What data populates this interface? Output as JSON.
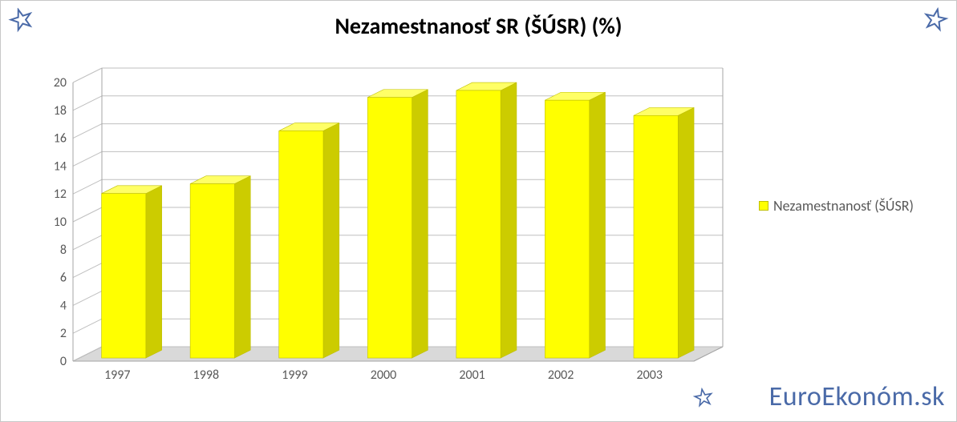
{
  "title": "Nezamestnanosť SR (ŠÚSR) (%)",
  "legend_label": "Nezamestnanosť  (ŠÚSR)",
  "watermark": "EuroEkonóm.sk",
  "chart": {
    "type": "bar-3d",
    "categories": [
      "1997",
      "1998",
      "1999",
      "2000",
      "2001",
      "2002",
      "2003"
    ],
    "values": [
      11.8,
      12.5,
      16.3,
      18.7,
      19.2,
      18.5,
      17.4
    ],
    "bar_color_front": "#ffff00",
    "bar_color_top": "#ffff66",
    "bar_color_side": "#cccc00",
    "ylim": [
      0,
      20
    ],
    "ytick_step": 2,
    "yticks": [
      "0",
      "2",
      "4",
      "6",
      "8",
      "10",
      "12",
      "14",
      "16",
      "18",
      "20"
    ],
    "grid_color": "#bfbfbf",
    "floor_color": "#d9d9d9",
    "background_color": "#ffffff",
    "label_color": "#595959",
    "title_fontsize": 28,
    "label_fontsize": 16,
    "legend_fontsize": 18,
    "bar_width_ratio": 0.5,
    "depth_dx": 36,
    "depth_dy": 18,
    "accent_color": "#4a6aa8"
  }
}
